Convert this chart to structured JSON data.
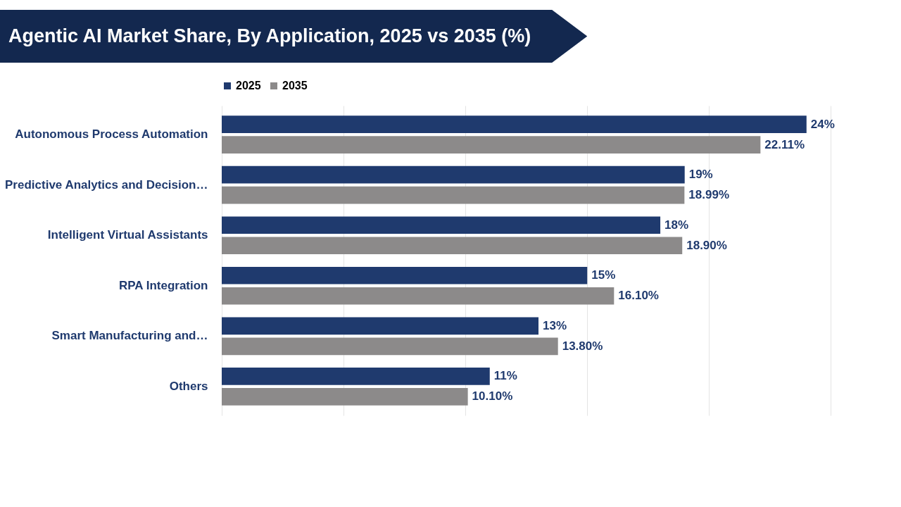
{
  "chart_data": {
    "type": "bar",
    "orientation": "horizontal",
    "title": "Agentic AI Market Share, By Application, 2025 vs 2035 (%)",
    "categories": [
      "Autonomous Process Automation",
      "Predictive Analytics and Decision…",
      "Intelligent Virtual Assistants",
      "RPA Integration",
      "Smart Manufacturing and…",
      "Others"
    ],
    "series": [
      {
        "name": "2025",
        "color": "#1f3a6e",
        "values": [
          24,
          19,
          18,
          15,
          13,
          11
        ],
        "value_labels": [
          "24%",
          "19%",
          "18%",
          "15%",
          "13%",
          "11%"
        ]
      },
      {
        "name": "2035",
        "color": "#8c8a8a",
        "values": [
          22.11,
          18.99,
          18.9,
          16.1,
          13.8,
          10.1
        ],
        "value_labels": [
          "22.11%",
          "18.99%",
          "18.90%",
          "16.10%",
          "13.80%",
          "10.10%"
        ]
      }
    ],
    "xlim": [
      0,
      26
    ],
    "xticks": [
      {
        "value": 0,
        "label": null
      },
      {
        "value": 5,
        "label": null
      },
      {
        "value": 10,
        "label": null
      },
      {
        "value": 15,
        "label": null
      },
      {
        "value": 20,
        "label": null
      },
      {
        "value": 25,
        "label": null
      }
    ],
    "grid": "x",
    "legend": "top",
    "tick_labels": "y"
  }
}
